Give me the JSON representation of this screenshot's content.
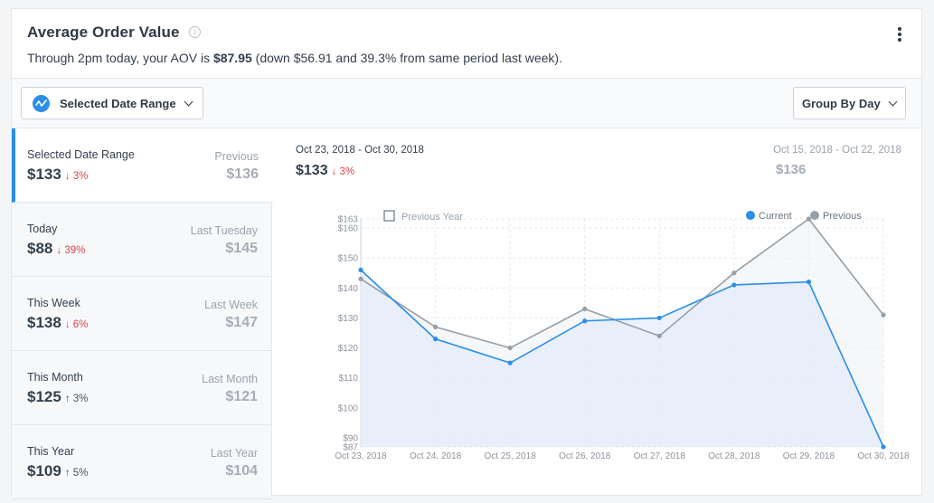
{
  "header": {
    "title": "Average Order Value",
    "info_icon": "info-icon",
    "summary_prefix": "Through 2pm today, your AOV is ",
    "summary_value": "$87.95",
    "summary_suffix": " (down $56.91 and 39.3% from same period last week).",
    "menu_icon": "kebab-menu-icon"
  },
  "toolbar": {
    "range_button_label": "Selected Date Range",
    "group_button_label": "Group By Day"
  },
  "sidebar": {
    "items": [
      {
        "label": "Selected Date Range",
        "value": "$133",
        "change": "3%",
        "direction": "down",
        "prev_label": "Previous",
        "prev_value": "$136"
      },
      {
        "label": "Today",
        "value": "$88",
        "change": "39%",
        "direction": "down",
        "prev_label": "Last Tuesday",
        "prev_value": "$145"
      },
      {
        "label": "This Week",
        "value": "$138",
        "change": "6%",
        "direction": "down",
        "prev_label": "Last Week",
        "prev_value": "$147"
      },
      {
        "label": "This Month",
        "value": "$125",
        "change": "3%",
        "direction": "up",
        "prev_label": "Last Month",
        "prev_value": "$121"
      },
      {
        "label": "This Year",
        "value": "$109",
        "change": "5%",
        "direction": "up",
        "prev_label": "Last Year",
        "prev_value": "$104"
      }
    ]
  },
  "main": {
    "range": "Oct 23, 2018 - Oct 30, 2018",
    "value": "$133",
    "change": "3%",
    "prev_range": "Oct 15, 2018 - Oct 22, 2018",
    "prev_value": "$136",
    "previous_year_label": "Previous Year"
  },
  "colors": {
    "current": "#2b8ee8",
    "previous": "#959fa8",
    "down": "#d9474b"
  },
  "chart_data": {
    "type": "line",
    "x": [
      "Oct 23, 2018",
      "Oct 24, 2018",
      "Oct 25, 2018",
      "Oct 26, 2018",
      "Oct 27, 2018",
      "Oct 28, 2018",
      "Oct 29, 2018",
      "Oct 30, 2018"
    ],
    "series": [
      {
        "name": "Current",
        "values": [
          146,
          123,
          115,
          129,
          130,
          141,
          142,
          87
        ]
      },
      {
        "name": "Previous",
        "values": [
          143,
          127,
          120,
          133,
          124,
          145,
          163,
          131
        ]
      }
    ],
    "yticks": [
      "$87",
      "$90",
      "$100",
      "$110",
      "$120",
      "$130",
      "$140",
      "$150",
      "$160",
      "$163"
    ],
    "ytick_values": [
      87,
      90,
      100,
      110,
      120,
      130,
      140,
      150,
      160,
      163
    ],
    "ylim": [
      87,
      163
    ],
    "grid": true,
    "legend_position": "top-right",
    "title": "",
    "xlabel": "",
    "ylabel": ""
  }
}
